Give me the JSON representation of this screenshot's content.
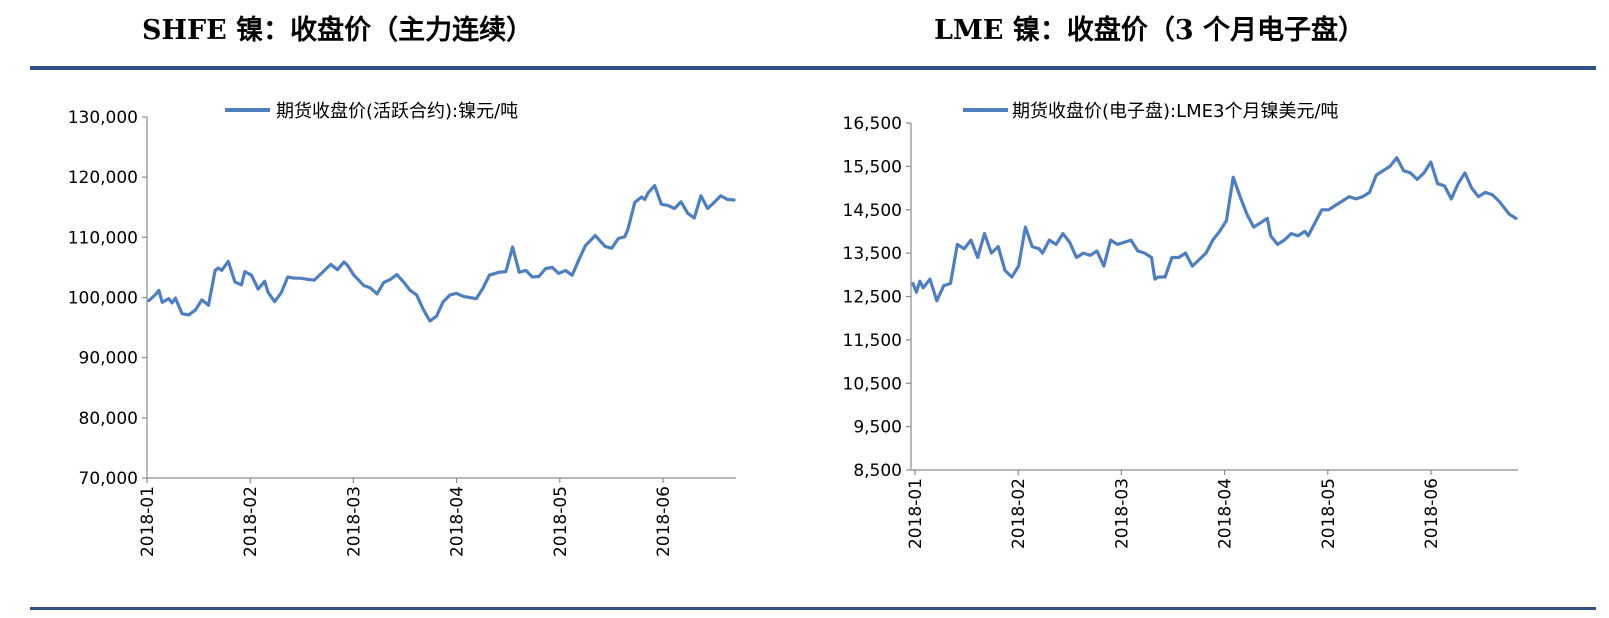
{
  "titles": {
    "left": "SHFE 镍：收盘价（主力连续）",
    "right": "LME 镍：收盘价（3 个月电子盘）"
  },
  "colors": {
    "line": "#4f7fbe",
    "axis": "#8c8c8c",
    "rule": "#2f4f86"
  },
  "chart_data": [
    {
      "type": "line",
      "title": "SHFE 镍：收盘价（主力连续）",
      "legend": "期货收盘价(活跃合约):镍元/吨",
      "ylim": [
        70000,
        130000
      ],
      "yticks": [
        70000,
        80000,
        90000,
        100000,
        110000,
        120000,
        130000
      ],
      "yticklabels": [
        "70,000",
        "80,000",
        "90,000",
        "100,000",
        "110,000",
        "120,000",
        "130,000"
      ],
      "xticklabels": [
        "2018-01",
        "2018-02",
        "2018-03",
        "2018-04",
        "2018-05",
        "2018-06"
      ],
      "xlim": [
        0,
        177
      ],
      "series": [
        {
          "name": "期货收盘价(活跃合约):镍元/吨",
          "x": [
            0,
            2,
            3,
            4,
            6,
            7,
            8,
            10,
            12,
            14,
            16,
            18,
            20,
            21,
            22,
            24,
            26,
            28,
            29,
            31,
            33,
            35,
            36,
            38,
            40,
            42,
            44,
            46,
            48,
            50,
            55,
            57,
            59,
            60,
            62,
            65,
            67,
            69,
            71,
            73,
            75,
            77,
            79,
            81,
            83,
            85,
            87,
            89,
            91,
            93,
            95,
            97,
            99,
            101,
            103,
            106,
            108,
            110,
            112,
            114,
            116,
            118,
            120,
            121,
            122,
            124,
            126,
            128,
            130,
            132,
            135,
            138,
            140,
            142,
            144,
            145,
            147,
            149,
            150,
            151,
            153,
            155,
            157,
            159,
            161,
            163,
            165,
            167,
            169,
            171,
            173,
            175,
            177
          ],
          "values": [
            99500,
            100500,
            101200,
            99200,
            99800,
            99100,
            99900,
            97300,
            97100,
            97900,
            99600,
            98700,
            104500,
            104900,
            104500,
            106000,
            102600,
            102100,
            104300,
            103700,
            101400,
            102700,
            100900,
            99300,
            100800,
            103400,
            103200,
            103200,
            103000,
            102900,
            105500,
            104600,
            105900,
            105400,
            103700,
            102000,
            101600,
            100600,
            102500,
            103000,
            103800,
            102600,
            101200,
            100400,
            98000,
            96100,
            96900,
            99300,
            100400,
            100700,
            100200,
            100000,
            99800,
            101500,
            103700,
            104200,
            104300,
            108400,
            104200,
            104500,
            103400,
            103500,
            104800,
            104900,
            105000,
            104000,
            104500,
            103700,
            106200,
            108600,
            110300,
            108500,
            108200,
            109800,
            110100,
            111500,
            115800,
            116700,
            116300,
            117400,
            118600,
            115500,
            115300,
            114800,
            115900,
            114000,
            113200,
            116900,
            114800,
            115800,
            116900,
            116300,
            116200
          ]
        }
      ]
    },
    {
      "type": "line",
      "title": "LME 镍：收盘价（3 个月电子盘）",
      "legend": "期货收盘价(电子盘):LME3个月镍美元/吨",
      "ylim": [
        8500,
        16500
      ],
      "yticks": [
        8500,
        9500,
        10500,
        11500,
        12500,
        13500,
        14500,
        15500,
        16500
      ],
      "yticklabels": [
        "8,500",
        "9,500",
        "10,500",
        "11,500",
        "12,500",
        "13,500",
        "14,500",
        "15,500",
        "16,500"
      ],
      "xticklabels": [
        "2018-01",
        "2018-02",
        "2018-03",
        "2018-04",
        "2018-05",
        "2018-06"
      ],
      "xlim": [
        0,
        177
      ],
      "series": [
        {
          "name": "期货收盘价(电子盘):LME3个月镍美元/吨",
          "x": [
            0,
            1,
            2,
            3,
            5,
            7,
            9,
            11,
            13,
            15,
            17,
            19,
            21,
            23,
            25,
            27,
            29,
            31,
            33,
            35,
            37,
            38,
            40,
            42,
            44,
            46,
            48,
            50,
            52,
            54,
            56,
            58,
            60,
            62,
            64,
            66,
            68,
            70,
            71,
            72,
            74,
            76,
            78,
            80,
            82,
            84,
            86,
            88,
            90,
            92,
            94,
            96,
            97,
            98,
            100,
            102,
            104,
            105,
            107,
            109,
            111,
            113,
            115,
            116,
            118,
            120,
            122,
            124,
            126,
            128,
            130,
            132,
            134,
            136,
            138,
            140,
            142,
            144,
            146,
            148,
            150,
            152,
            154,
            156,
            158,
            160,
            162,
            164,
            166,
            168,
            170,
            172,
            174,
            175,
            176,
            177
          ],
          "values": [
            12800,
            12600,
            12850,
            12700,
            12900,
            12400,
            12750,
            12800,
            13700,
            13600,
            13800,
            13400,
            13950,
            13500,
            13650,
            13100,
            12950,
            13200,
            14100,
            13650,
            13600,
            13500,
            13800,
            13700,
            13950,
            13750,
            13400,
            13500,
            13450,
            13550,
            13200,
            13800,
            13700,
            13750,
            13800,
            13550,
            13500,
            13400,
            12900,
            12950,
            12950,
            13400,
            13400,
            13500,
            13200,
            13350,
            13500,
            13800,
            14000,
            14250,
            15250,
            14800,
            14600,
            14400,
            14100,
            14200,
            14300,
            13900,
            13700,
            13800,
            13950,
            13900,
            14000,
            13900,
            14200,
            14500,
            14500,
            14600,
            14700,
            14800,
            14750,
            14800,
            14900,
            15300,
            15400,
            15500,
            15700,
            15400,
            15350,
            15200,
            15350,
            15600,
            15100,
            15050,
            14750,
            15100,
            15350,
            15000,
            14800,
            14900,
            14850,
            14700,
            14500,
            14400,
            14350,
            14300
          ]
        }
      ]
    }
  ]
}
